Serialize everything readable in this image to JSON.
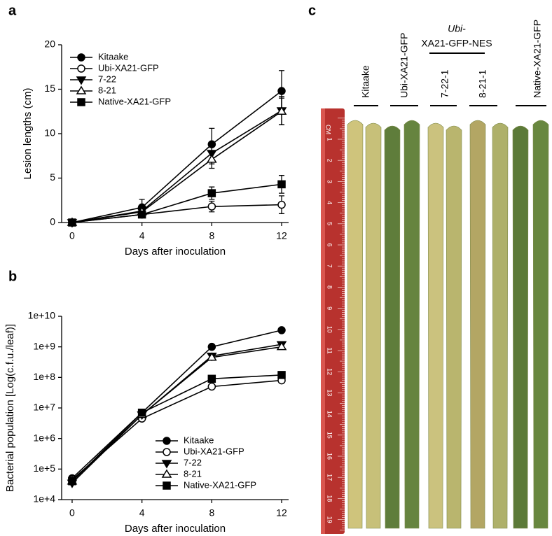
{
  "panel_labels": [
    "a",
    "b",
    "c"
  ],
  "chart_data": [
    {
      "type": "line",
      "x_label": "Days after inoculation",
      "y_label": "Lesion lengths (cm)",
      "x": [
        0,
        4,
        8,
        12
      ],
      "xlim": [
        -0.6,
        12.4
      ],
      "xticks": [
        0,
        4,
        8,
        12
      ],
      "ylim": [
        0,
        20
      ],
      "yticks": [
        0,
        5,
        10,
        15,
        20
      ],
      "legend": "upper left",
      "series": [
        {
          "name": "Kitaake",
          "color": "#000000",
          "marker": "circle",
          "values": [
            0,
            1.7,
            8.8,
            14.8
          ],
          "errors": [
            0.2,
            0.9,
            1.8,
            2.3
          ]
        },
        {
          "name": "Ubi-XA21-GFP",
          "color": "#000000",
          "marker": "circle-open",
          "values": [
            0,
            0.9,
            1.8,
            2.0
          ],
          "errors": [
            0.1,
            0.3,
            0.6,
            1.0
          ]
        },
        {
          "name": "7-22",
          "color": "#000000",
          "marker": "triangle-down",
          "values": [
            0,
            1.3,
            7.8,
            12.6
          ],
          "errors": [
            0.1,
            0.6,
            1.2,
            1.6
          ]
        },
        {
          "name": "8-21",
          "color": "#000000",
          "marker": "triangle-up-open",
          "values": [
            0,
            1.2,
            7.1,
            12.5
          ],
          "errors": [
            0.1,
            0.5,
            1.0,
            1.5
          ]
        },
        {
          "name": "Native-XA21-GFP",
          "color": "#000000",
          "marker": "square",
          "values": [
            0,
            0.9,
            3.3,
            4.3
          ],
          "errors": [
            0.1,
            0.3,
            0.7,
            1.0
          ]
        }
      ]
    },
    {
      "type": "line",
      "x_label": "Days after inoculation",
      "y_label": "Bacterial population [Log(c.f.u./leaf)]",
      "x": [
        0,
        4,
        8,
        12
      ],
      "xlim": [
        -0.6,
        12.4
      ],
      "xticks": [
        0,
        4,
        8,
        12
      ],
      "log_scale": true,
      "ylim": [
        10000,
        10000000000
      ],
      "yticks": [
        {
          "value": 10000,
          "label": "1e+4"
        },
        {
          "value": 100000,
          "label": "1e+5"
        },
        {
          "value": 1000000,
          "label": "1e+6"
        },
        {
          "value": 10000000,
          "label": "1e+7"
        },
        {
          "value": 100000000,
          "label": "1e+8"
        },
        {
          "value": 1000000000,
          "label": "1e+9"
        },
        {
          "value": 10000000000,
          "label": "1e+10"
        }
      ],
      "legend": "lower right",
      "series": [
        {
          "name": "Kitaake",
          "color": "#000000",
          "marker": "circle",
          "values": [
            50000,
            7000000,
            1000000000,
            3500000000
          ]
        },
        {
          "name": "Ubi-XA21-GFP",
          "color": "#000000",
          "marker": "circle-open",
          "values": [
            45000,
            4500000,
            50000000,
            80000000
          ]
        },
        {
          "name": "7-22",
          "color": "#000000",
          "marker": "triangle-down",
          "values": [
            35000,
            6000000,
            500000000,
            1200000000
          ]
        },
        {
          "name": "8-21",
          "color": "#000000",
          "marker": "triangle-up-open",
          "values": [
            40000,
            6000000,
            450000000,
            1000000000
          ]
        },
        {
          "name": "Native-XA21-GFP",
          "color": "#000000",
          "marker": "square",
          "values": [
            40000,
            7000000,
            90000000,
            120000000
          ]
        }
      ]
    }
  ],
  "photo": {
    "labels": [
      "Kitaake",
      "Ubi-XA21-GFP",
      "Ubi-",
      "XA21-GFP-NES",
      "7-22-1",
      "8-21-1",
      "Native-XA21-GFP"
    ],
    "ruler_unit": "CM",
    "ruler_numbers": [
      1,
      2,
      3,
      4,
      5,
      6,
      7,
      8,
      9,
      10,
      11,
      12,
      13,
      14,
      15,
      16,
      17,
      18,
      19
    ]
  }
}
